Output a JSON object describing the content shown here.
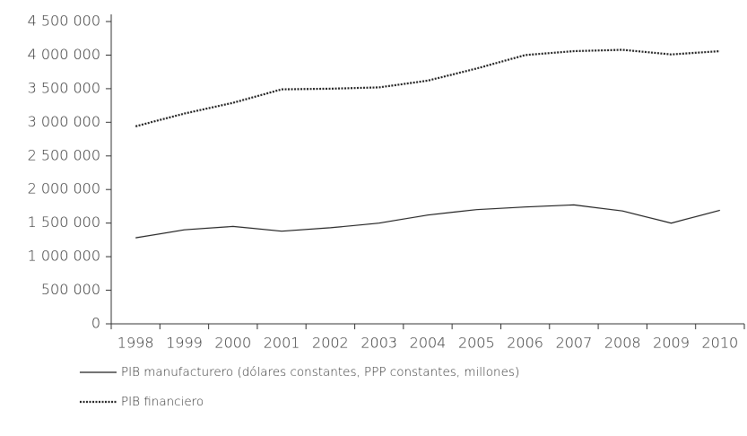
{
  "chart_data": {
    "type": "line",
    "categories": [
      "1998",
      "1999",
      "2000",
      "2001",
      "2002",
      "2003",
      "2004",
      "2005",
      "2006",
      "2007",
      "2008",
      "2009",
      "2010"
    ],
    "series": [
      {
        "name": "PIB manufacturero (dólares constantes, PPP constantes, millones)",
        "color": "#222222",
        "dash": "solid",
        "values": [
          1280000,
          1400000,
          1450000,
          1380000,
          1430000,
          1500000,
          1620000,
          1700000,
          1740000,
          1770000,
          1680000,
          1500000,
          1690000
        ]
      },
      {
        "name": "PIB financiero",
        "color": "#222222",
        "dash": "dotted",
        "values": [
          2940000,
          3130000,
          3290000,
          3490000,
          3500000,
          3520000,
          3620000,
          3800000,
          4000000,
          4060000,
          4080000,
          4010000,
          4060000
        ]
      }
    ],
    "ylim": [
      0,
      4500000
    ],
    "yticks": [
      0,
      {
        "value": 500000,
        "label": "500 000"
      },
      {
        "value": 1000000,
        "label": "1 000 000"
      },
      {
        "value": 1500000,
        "label": "1 500 000"
      },
      {
        "value": 2000000,
        "label": "2 000 000"
      },
      {
        "value": 2500000,
        "label": "2 500 000"
      },
      {
        "value": 3000000,
        "label": "3 000 000"
      },
      {
        "value": 3500000,
        "label": "3 500 000"
      },
      {
        "value": 4000000,
        "label": "4 000 000"
      },
      {
        "value": 4500000,
        "label": "4 500 000"
      }
    ],
    "grid": false,
    "legend": "bottom"
  }
}
